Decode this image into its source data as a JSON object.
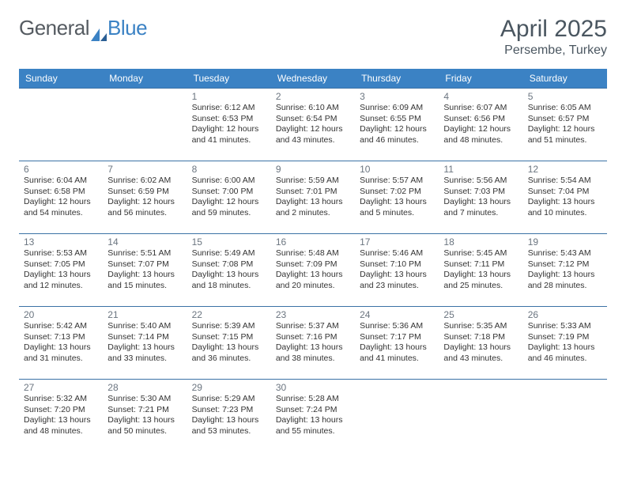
{
  "logo": {
    "part1": "General",
    "part2": "Blue"
  },
  "title": "April 2025",
  "location": "Persembe, Turkey",
  "colors": {
    "header_bg": "#3b82c4",
    "header_text": "#ffffff",
    "rule": "#3b72a6",
    "daynum": "#6b7580",
    "body_text": "#333333",
    "logo_gray": "#555b61",
    "logo_blue": "#3b82c4"
  },
  "day_labels": [
    "Sunday",
    "Monday",
    "Tuesday",
    "Wednesday",
    "Thursday",
    "Friday",
    "Saturday"
  ],
  "weeks": [
    [
      null,
      null,
      {
        "n": "1",
        "sr": "6:12 AM",
        "ss": "6:53 PM",
        "dl": "12 hours and 41 minutes."
      },
      {
        "n": "2",
        "sr": "6:10 AM",
        "ss": "6:54 PM",
        "dl": "12 hours and 43 minutes."
      },
      {
        "n": "3",
        "sr": "6:09 AM",
        "ss": "6:55 PM",
        "dl": "12 hours and 46 minutes."
      },
      {
        "n": "4",
        "sr": "6:07 AM",
        "ss": "6:56 PM",
        "dl": "12 hours and 48 minutes."
      },
      {
        "n": "5",
        "sr": "6:05 AM",
        "ss": "6:57 PM",
        "dl": "12 hours and 51 minutes."
      }
    ],
    [
      {
        "n": "6",
        "sr": "6:04 AM",
        "ss": "6:58 PM",
        "dl": "12 hours and 54 minutes."
      },
      {
        "n": "7",
        "sr": "6:02 AM",
        "ss": "6:59 PM",
        "dl": "12 hours and 56 minutes."
      },
      {
        "n": "8",
        "sr": "6:00 AM",
        "ss": "7:00 PM",
        "dl": "12 hours and 59 minutes."
      },
      {
        "n": "9",
        "sr": "5:59 AM",
        "ss": "7:01 PM",
        "dl": "13 hours and 2 minutes."
      },
      {
        "n": "10",
        "sr": "5:57 AM",
        "ss": "7:02 PM",
        "dl": "13 hours and 5 minutes."
      },
      {
        "n": "11",
        "sr": "5:56 AM",
        "ss": "7:03 PM",
        "dl": "13 hours and 7 minutes."
      },
      {
        "n": "12",
        "sr": "5:54 AM",
        "ss": "7:04 PM",
        "dl": "13 hours and 10 minutes."
      }
    ],
    [
      {
        "n": "13",
        "sr": "5:53 AM",
        "ss": "7:05 PM",
        "dl": "13 hours and 12 minutes."
      },
      {
        "n": "14",
        "sr": "5:51 AM",
        "ss": "7:07 PM",
        "dl": "13 hours and 15 minutes."
      },
      {
        "n": "15",
        "sr": "5:49 AM",
        "ss": "7:08 PM",
        "dl": "13 hours and 18 minutes."
      },
      {
        "n": "16",
        "sr": "5:48 AM",
        "ss": "7:09 PM",
        "dl": "13 hours and 20 minutes."
      },
      {
        "n": "17",
        "sr": "5:46 AM",
        "ss": "7:10 PM",
        "dl": "13 hours and 23 minutes."
      },
      {
        "n": "18",
        "sr": "5:45 AM",
        "ss": "7:11 PM",
        "dl": "13 hours and 25 minutes."
      },
      {
        "n": "19",
        "sr": "5:43 AM",
        "ss": "7:12 PM",
        "dl": "13 hours and 28 minutes."
      }
    ],
    [
      {
        "n": "20",
        "sr": "5:42 AM",
        "ss": "7:13 PM",
        "dl": "13 hours and 31 minutes."
      },
      {
        "n": "21",
        "sr": "5:40 AM",
        "ss": "7:14 PM",
        "dl": "13 hours and 33 minutes."
      },
      {
        "n": "22",
        "sr": "5:39 AM",
        "ss": "7:15 PM",
        "dl": "13 hours and 36 minutes."
      },
      {
        "n": "23",
        "sr": "5:37 AM",
        "ss": "7:16 PM",
        "dl": "13 hours and 38 minutes."
      },
      {
        "n": "24",
        "sr": "5:36 AM",
        "ss": "7:17 PM",
        "dl": "13 hours and 41 minutes."
      },
      {
        "n": "25",
        "sr": "5:35 AM",
        "ss": "7:18 PM",
        "dl": "13 hours and 43 minutes."
      },
      {
        "n": "26",
        "sr": "5:33 AM",
        "ss": "7:19 PM",
        "dl": "13 hours and 46 minutes."
      }
    ],
    [
      {
        "n": "27",
        "sr": "5:32 AM",
        "ss": "7:20 PM",
        "dl": "13 hours and 48 minutes."
      },
      {
        "n": "28",
        "sr": "5:30 AM",
        "ss": "7:21 PM",
        "dl": "13 hours and 50 minutes."
      },
      {
        "n": "29",
        "sr": "5:29 AM",
        "ss": "7:23 PM",
        "dl": "13 hours and 53 minutes."
      },
      {
        "n": "30",
        "sr": "5:28 AM",
        "ss": "7:24 PM",
        "dl": "13 hours and 55 minutes."
      },
      null,
      null,
      null
    ]
  ],
  "labels": {
    "sunrise_prefix": "Sunrise: ",
    "sunset_prefix": "Sunset: ",
    "daylight_prefix": "Daylight: "
  }
}
